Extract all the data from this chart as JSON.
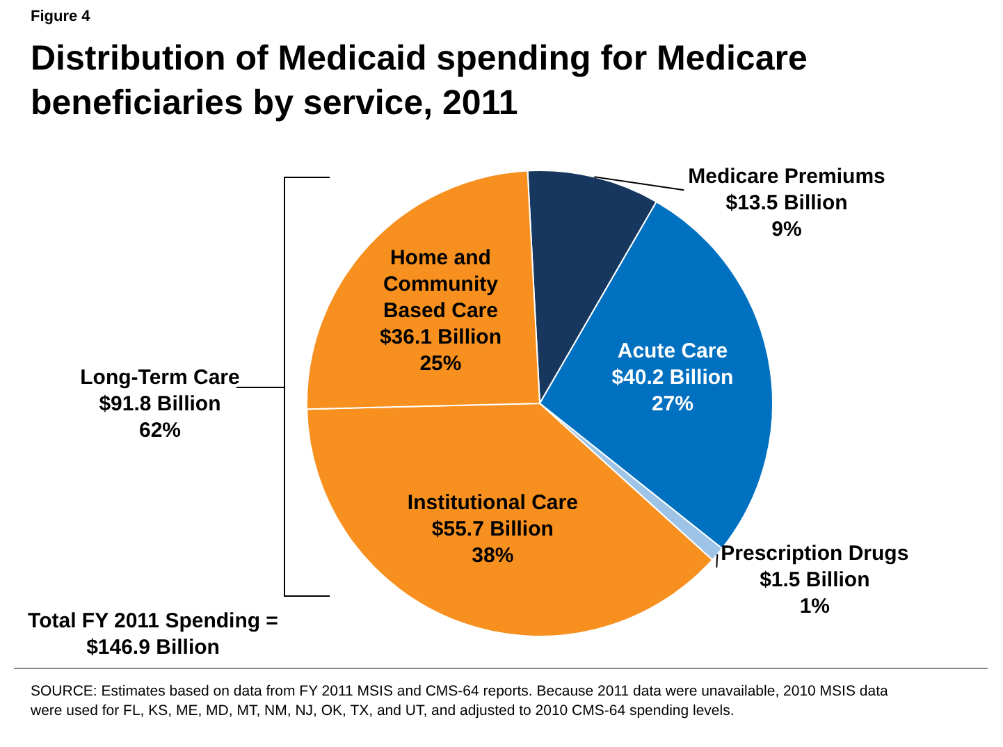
{
  "chart_data": {
    "type": "pie",
    "subtitle": "Figure 4",
    "title": "Distribution of Medicaid spending for Medicare beneficiaries by service, 2011",
    "categories": [
      "Medicare Premiums",
      "Acute Care",
      "Prescription Drugs",
      "Institutional Care",
      "Home and Community Based Care"
    ],
    "values": [
      13.5,
      40.2,
      1.5,
      55.7,
      36.1
    ],
    "colors": [
      "#17375e",
      "#0070c0",
      "#9dc3e6",
      "#f7901e",
      "#f7901e"
    ],
    "value_labels": [
      "$13.5 Billion\n9%",
      "$40.2 Billion\n27%",
      "$1.5 Billion\n1%",
      "$55.7 Billion\n38%",
      "$36.1 Billion\n25%"
    ],
    "annotations": [
      "Long-Term Care\n$91.8 Billion\n62%",
      "Total FY 2011 Spending =\n$146.9 Billion",
      "SOURCE: Estimates based on data from FY 2011 MSIS and CMS-64 reports. Because 2011 data were unavailable, 2010 MSIS data were used for FL, KS, ME, MD, MT, NM, NJ, OK, TX, and UT, and adjusted to 2010 CMS-64 spending levels."
    ],
    "legend": false
  }
}
